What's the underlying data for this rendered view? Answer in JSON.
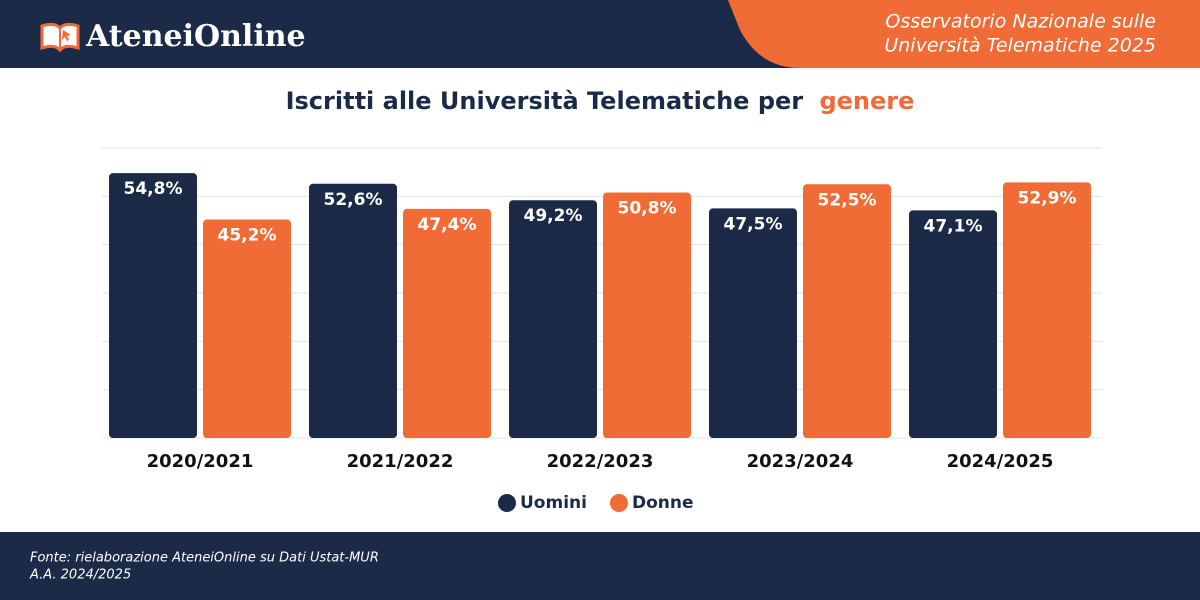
{
  "header": {
    "logo": "AteneiOnline",
    "tagline": [
      "Osservatorio Nazionale sulle",
      "Università Telematiche 2025"
    ]
  },
  "chart_data": {
    "type": "bar",
    "title": [
      "Iscritti alle Università Telematiche per",
      "genere"
    ],
    "categories": [
      "2020/2021",
      "2021/2022",
      "2022/2023",
      "2023/2024",
      "2024/2025"
    ],
    "series": [
      {
        "name": "Uomini",
        "color": "#1b2a47",
        "values": [
          54.8,
          52.6,
          49.2,
          47.5,
          47.1
        ],
        "value_labels": [
          "54,8%",
          "52,6%",
          "49,2%",
          "47,5%",
          "47,1%"
        ]
      },
      {
        "name": "Donne",
        "color": "#f06b36",
        "values": [
          45.2,
          47.4,
          50.8,
          52.5,
          52.9
        ],
        "value_labels": [
          "45,2%",
          "47,4%",
          "50,8%",
          "52,5%",
          "52,9%"
        ]
      }
    ],
    "ylim": [
      0,
      60
    ],
    "yticks": [
      0,
      10,
      20,
      30,
      40,
      50,
      60
    ],
    "grid": true,
    "legend": "bottom"
  },
  "footer": {
    "source": "Fonte: rielaborazione AteneiOnline su Dati Ustat-MUR",
    "year": "A.A. 2024/2025"
  }
}
